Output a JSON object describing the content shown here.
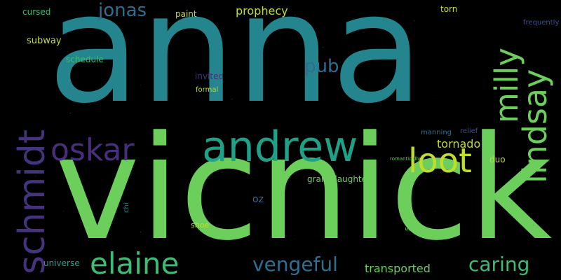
{
  "words": {
    "anna": "anna",
    "vicnick": "vicnick",
    "andrew": "andrew",
    "oskar": "oskar",
    "loot": "loot",
    "schmidt": "schmidt",
    "lindsay": "lindsay",
    "milly": "milly",
    "elaine": "elaine",
    "vengeful": "vengeful",
    "caring": "caring",
    "jonas": "jonas",
    "pub": "pub",
    "prophecy": "prophecy",
    "tornado": "tornado",
    "transported": "transported",
    "universe": "universe",
    "subway": "subway",
    "granddaughter": "granddaughter",
    "cursed": "cursed",
    "paint": "paint",
    "torn": "torn",
    "schedule": "schedule",
    "invited": "invited",
    "formal": "formal",
    "oz": "oz",
    "shoe": "shoe",
    "duo": "duo",
    "relief": "relief",
    "manning": "manning",
    "romantically": "romantically",
    "frequently": "frequently",
    "separately": "separately",
    "chi": "chi"
  },
  "colors": {
    "background": "#000000",
    "light_green": "#6ccf5c",
    "yellow_green": "#c3dc2b",
    "teal": "#25858e",
    "blue_teal": "#2e6e8e",
    "mid_green": "#3ebb74",
    "aqua_green": "#1fa187",
    "purple": "#472f7d",
    "dark_purple": "#45337d",
    "slate": "#3b528b"
  }
}
